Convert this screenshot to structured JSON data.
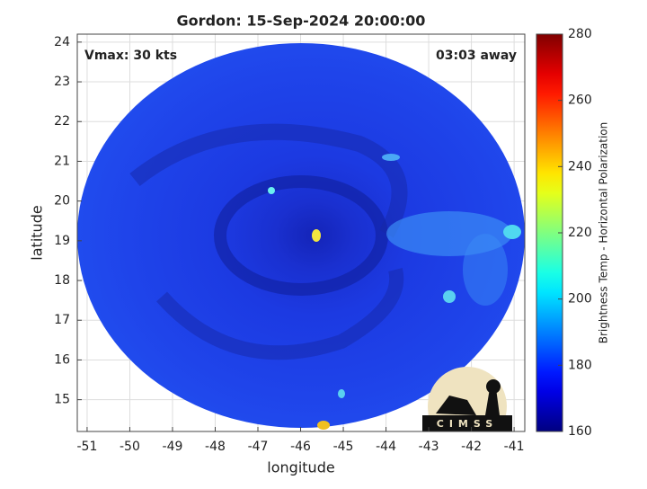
{
  "chart_data": {
    "type": "image",
    "title": "Gordon: 15-Sep-2024 20:00:00",
    "annotations": [
      "Vmax: 30 kts",
      "03:03 away"
    ],
    "x_label": "longitude",
    "y_label": "latitude",
    "xlim": [
      -51.23,
      -40.75
    ],
    "xticks": [
      -51,
      -50,
      -49,
      -48,
      -47,
      -46,
      -45,
      -44,
      -43,
      -42,
      -41
    ],
    "ylim": [
      14.2,
      24.2
    ],
    "yticks": [
      15,
      16,
      17,
      18,
      19,
      20,
      21,
      22,
      23,
      24
    ],
    "grid": true,
    "colorbar": {
      "label": "Brightness Temp - Horizontal Polarization",
      "colormap": "jet",
      "lim": [
        160,
        280
      ],
      "ticks": [
        160,
        180,
        200,
        220,
        240,
        260,
        280
      ]
    },
    "logo": "CIMSS"
  }
}
